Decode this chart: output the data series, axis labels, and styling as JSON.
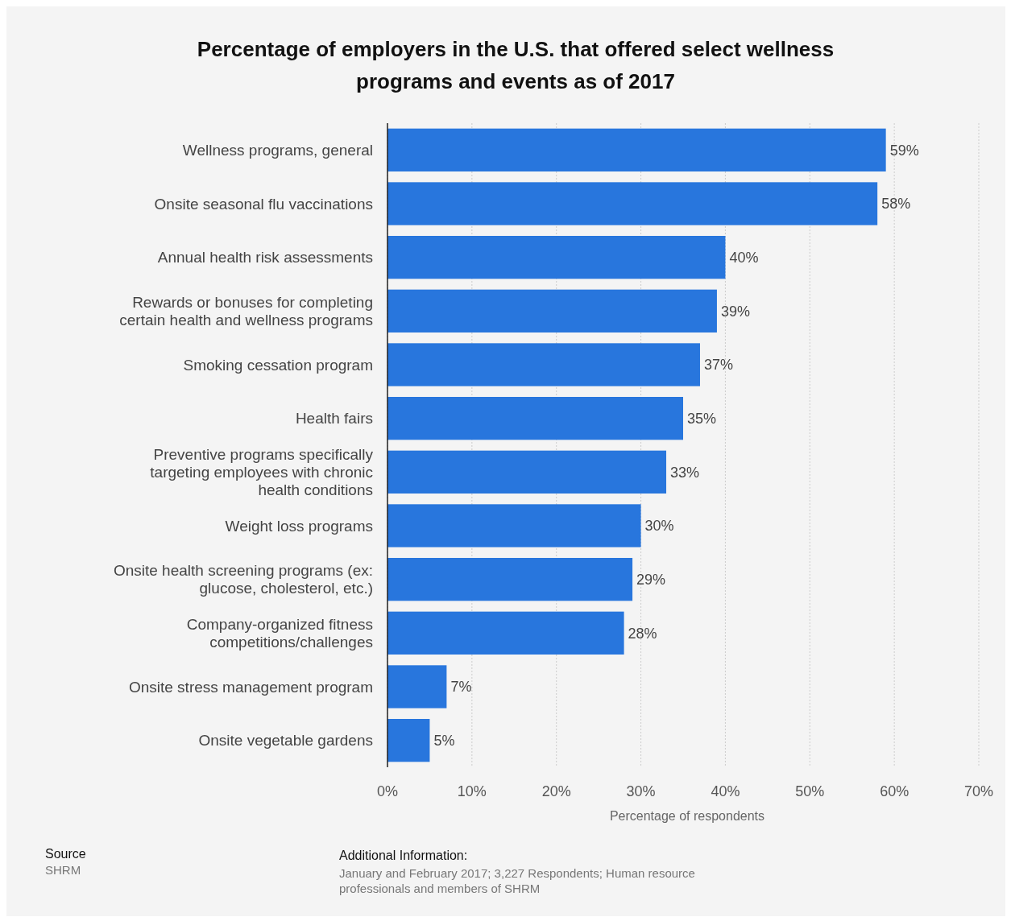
{
  "chart_data": {
    "type": "bar",
    "orientation": "horizontal",
    "title": "Percentage of employers in the U.S. that offered select wellness programs and events as of 2017",
    "xlabel": "Percentage of respondents",
    "categories": [
      "Wellness programs, general",
      "Onsite seasonal flu vaccinations",
      "Annual health risk assessments",
      "Rewards or bonuses for completing certain health and wellness programs",
      "Smoking cessation program",
      "Health fairs",
      "Preventive programs specifically targeting employees with chronic health conditions",
      "Weight loss programs",
      "Onsite health screening programs (ex: glucose, cholesterol, etc.)",
      "Company-organized fitness competitions/challenges",
      "Onsite stress management program",
      "Onsite vegetable gardens"
    ],
    "values": [
      59,
      58,
      40,
      39,
      37,
      35,
      33,
      30,
      29,
      28,
      7,
      5
    ],
    "color": "#2876dd",
    "xlim": [
      0,
      70
    ],
    "xticks": [
      {
        "value": 0,
        "label": "0%"
      },
      {
        "value": 10,
        "label": "10%"
      },
      {
        "value": 20,
        "label": "20%"
      },
      {
        "value": 30,
        "label": "30%"
      },
      {
        "value": 40,
        "label": "40%"
      },
      {
        "value": 50,
        "label": "50%"
      },
      {
        "value": 60,
        "label": "60%"
      },
      {
        "value": 70,
        "label": "70%"
      }
    ],
    "value_labels": [
      "59%",
      "58%",
      "40%",
      "39%",
      "37%",
      "35%",
      "33%",
      "30%",
      "29%",
      "28%",
      "7%",
      "5%"
    ],
    "grid": "x",
    "annotations": [
      "Source",
      "SHRM",
      "Additional Information:",
      "January and February 2017; 3,227 Respondents; Human resource professionals and members of SHRM"
    ]
  }
}
